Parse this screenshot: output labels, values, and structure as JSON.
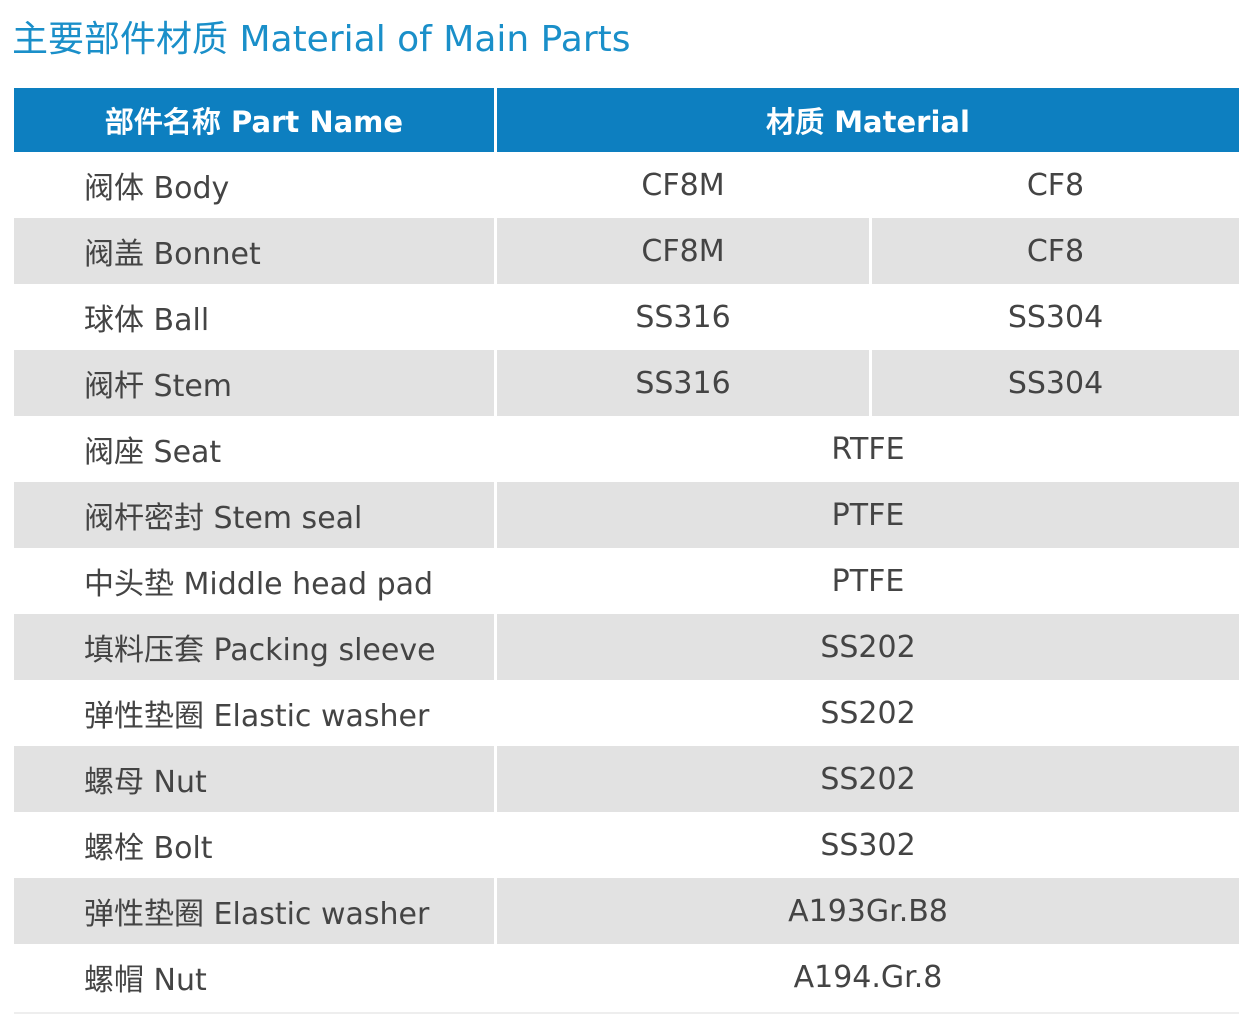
{
  "title": "主要部件材质 Material of Main Parts",
  "table": {
    "header": {
      "part": "部件名称 Part Name",
      "material": "材质 Material"
    },
    "rows": [
      {
        "part": "阀体 Body",
        "m1": "CF8M",
        "m2": "CF8"
      },
      {
        "part": "阀盖 Bonnet",
        "m1": "CF8M",
        "m2": "CF8"
      },
      {
        "part": "球体 Ball",
        "m1": "SS316",
        "m2": "SS304"
      },
      {
        "part": "阀杆 Stem",
        "m1": "SS316",
        "m2": "SS304"
      },
      {
        "part": "阀座 Seat",
        "m": "RTFE"
      },
      {
        "part": "阀杆密封 Stem seal",
        "m": "PTFE"
      },
      {
        "part": "中头垫 Middle head pad",
        "m": "PTFE"
      },
      {
        "part": "填料压套 Packing sleeve",
        "m": "SS202"
      },
      {
        "part": "弹性垫圈 Elastic washer",
        "m": "SS202"
      },
      {
        "part": "螺母 Nut",
        "m": "SS202"
      },
      {
        "part": "螺栓 Bolt",
        "m": "SS302"
      },
      {
        "part": "弹性垫圈 Elastic washer",
        "m": "A193Gr.B8"
      },
      {
        "part": "螺帽 Nut",
        "m": "A194.Gr.8"
      }
    ]
  },
  "colors": {
    "title": "#1a8fc9",
    "header_bg": "#0d7fc0",
    "row_shade": "#e2e2e2",
    "text": "#444444"
  }
}
